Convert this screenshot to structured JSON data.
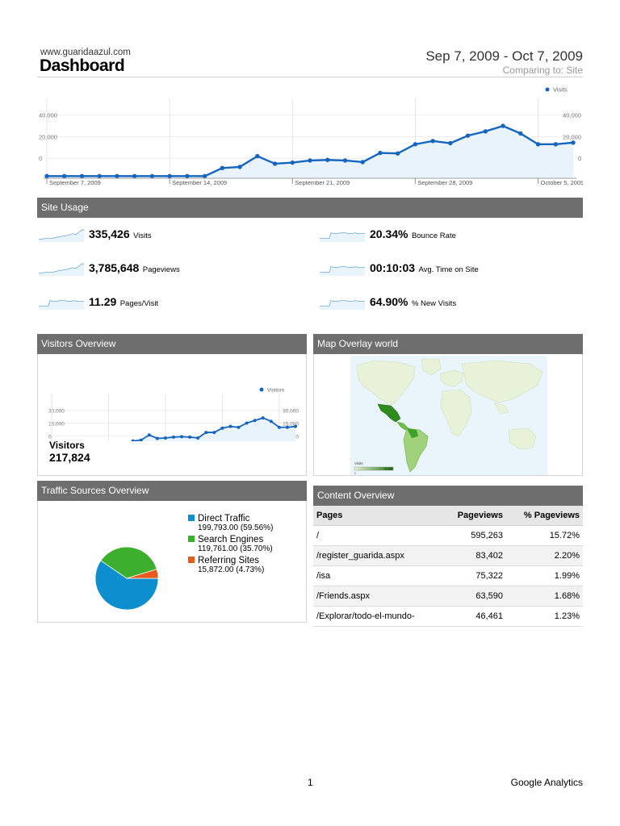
{
  "header": {
    "site_url": "www.guaridaazul.com",
    "title": "Dashboard",
    "date_range": "Sep 7, 2009 - Oct 7, 2009",
    "comparing": "Comparing to: Site"
  },
  "colors": {
    "series_blue": "#1565c0",
    "panel_header_bg": "#6e6e6e",
    "direct": "#0d8ecf",
    "search": "#3cb02e",
    "referring": "#e8591c",
    "map_land": "#e8f2d8",
    "map_water": "#eaf4fb"
  },
  "main_chart": {
    "chart_data": {
      "type": "line",
      "legend": "Visits",
      "y_ticks": [
        "40,000",
        "20,000",
        "0"
      ],
      "ylim": [
        -17000,
        48000
      ],
      "x_tick_labels": [
        "September 7, 2009",
        "September 14, 2009",
        "September 21, 2009",
        "September 28, 2009",
        "October 5, 2009"
      ],
      "series": [
        {
          "name": "Visits",
          "values": [
            -16500,
            -16500,
            -16500,
            -16500,
            -16500,
            -16500,
            -16500,
            -16500,
            -16500,
            -16500,
            -9000,
            -8000,
            2000,
            -5000,
            -4000,
            -2000,
            -1500,
            -2000,
            -3500,
            5000,
            4500,
            13000,
            16000,
            14000,
            21000,
            25000,
            30000,
            23000,
            13000,
            13000,
            14500
          ]
        }
      ]
    }
  },
  "site_usage": {
    "title": "Site Usage",
    "metrics": [
      {
        "value": "335,426",
        "label": "Visits"
      },
      {
        "value": "20.34%",
        "label": "Bounce Rate"
      },
      {
        "value": "3,785,648",
        "label": "Pageviews"
      },
      {
        "value": "00:10:03",
        "label": "Avg. Time on Site"
      },
      {
        "value": "11.29",
        "label": "Pages/Visit"
      },
      {
        "value": "64.90%",
        "label": "% New Visits"
      }
    ]
  },
  "visitors_overview": {
    "title": "Visitors Overview",
    "chart_data": {
      "type": "line",
      "legend": "Visitors",
      "y_ticks": [
        "30,000",
        "15,000",
        "0"
      ],
      "ylim": [
        -12000,
        40000
      ],
      "x_tick_labels": [
        "September 7, 2009",
        "September 14, 200",
        "September 21, 200",
        "September 28, 200",
        "Octobe"
      ],
      "series": [
        {
          "name": "Visitors",
          "values": [
            -11000,
            -11000,
            -11000,
            -11000,
            -11000,
            -11000,
            -11000,
            -11000,
            -11000,
            -11000,
            -6000,
            -5000,
            1000,
            -3000,
            -2500,
            -1500,
            -1000,
            -1500,
            -2500,
            4000,
            4000,
            9000,
            11000,
            10000,
            15000,
            18000,
            21000,
            17000,
            10000,
            10000,
            11000
          ]
        }
      ]
    },
    "total_label": "Visitors",
    "total_value": "217,824"
  },
  "map_overlay": {
    "title": "Map Overlay world",
    "legend_label": "Visits",
    "legend_min": "1",
    "legend_max": "78,880"
  },
  "traffic_sources": {
    "title": "Traffic Sources Overview",
    "chart_data": {
      "type": "pie",
      "slices": [
        {
          "name": "Direct Traffic",
          "value": 199793.0,
          "percent": 59.56,
          "value_text": "199,793.00 (59.56%)"
        },
        {
          "name": "Search Engines",
          "value": 119761.0,
          "percent": 35.7,
          "value_text": "119,761.00 (35.70%)"
        },
        {
          "name": "Referring Sites",
          "value": 15872.0,
          "percent": 4.73,
          "value_text": "15,872.00 (4.73%)"
        }
      ]
    }
  },
  "content_overview": {
    "title": "Content Overview",
    "columns": [
      "Pages",
      "Pageviews",
      "% Pageviews"
    ],
    "rows": [
      {
        "page": "/",
        "pageviews": "595,263",
        "pct": "15.72%"
      },
      {
        "page": "/register_guarida.aspx",
        "pageviews": "83,402",
        "pct": "2.20%"
      },
      {
        "page": "/isa",
        "pageviews": "75,322",
        "pct": "1.99%"
      },
      {
        "page": "/Friends.aspx",
        "pageviews": "63,590",
        "pct": "1.68%"
      },
      {
        "page": "/Explorar/todo-el-mundo-",
        "pageviews": "46,461",
        "pct": "1.23%"
      }
    ]
  },
  "footer": {
    "page_number": "1",
    "brand": "Google Analytics"
  }
}
